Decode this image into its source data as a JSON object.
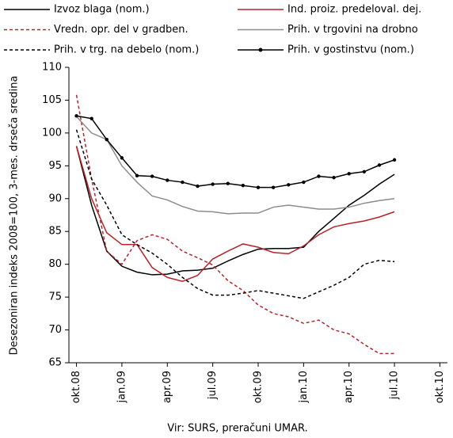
{
  "chart_data": {
    "type": "line",
    "y_label": "Desezoniran indeks 2008=100, 3-mes. drseča sredina",
    "source": "Vir: SURS, preračuni UMAR.",
    "legend": "top",
    "categories": [
      "okt.08",
      null,
      null,
      "jan.09",
      null,
      null,
      "apr.09",
      null,
      null,
      "jul.09",
      null,
      null,
      "okt.09",
      null,
      null,
      "jan.10",
      null,
      null,
      "apr.10",
      null,
      null,
      "jul.10",
      null,
      null,
      "okt.10"
    ],
    "ylim": [
      65,
      110
    ],
    "yticks": [
      65,
      70,
      75,
      80,
      85,
      90,
      95,
      100,
      105,
      110
    ],
    "series": [
      {
        "name": "Izvoz blaga (nom.)",
        "color": "#000000",
        "line_style": "solid",
        "values": [
          98,
          89,
          82,
          79.7,
          78.8,
          78.4,
          78.5,
          79,
          79.1,
          79.4,
          80.5,
          81.5,
          82.3,
          82.4,
          82.4,
          82.6,
          85,
          87,
          89,
          90.5,
          92.2,
          93.7,
          null,
          null,
          null
        ]
      },
      {
        "name": "Ind. proiz. predeloval. dej.",
        "color": "#b5242a",
        "line_style": "solid",
        "values": [
          98,
          90,
          84.8,
          83,
          83,
          79.5,
          78,
          77.4,
          78.3,
          80.8,
          82,
          83.1,
          82.6,
          81.8,
          81.6,
          82.8,
          84.5,
          85.7,
          86.2,
          86.6,
          87.2,
          88,
          null,
          null,
          null
        ]
      },
      {
        "name": "Vredn. opr. del v gradben.",
        "color": "#b5242a",
        "line_style": "dashed",
        "values": [
          105.8,
          93,
          82,
          80,
          83.6,
          84.5,
          83.8,
          82,
          81,
          79.9,
          77.5,
          76,
          73.8,
          72.5,
          72,
          71,
          71.5,
          70,
          69.4,
          67.8,
          66.4,
          66.4,
          null,
          null,
          null
        ]
      },
      {
        "name": "Prih. v trgovini na drobno",
        "color": "#8c8c8c",
        "line_style": "solid",
        "values": [
          102.5,
          100,
          99,
          95,
          92.5,
          90.4,
          89.8,
          88.8,
          88.1,
          88,
          87.7,
          87.8,
          87.8,
          88.7,
          89,
          88.7,
          88.4,
          88.4,
          88.7,
          89.3,
          89.7,
          90,
          null,
          null,
          null
        ]
      },
      {
        "name": "Prih. v trg. na debelo (nom.)",
        "color": "#000000",
        "line_style": "dashed",
        "values": [
          100.5,
          93,
          89,
          84.5,
          83,
          81.7,
          80,
          78,
          76.3,
          75.3,
          75.3,
          75.6,
          76,
          75.6,
          75.2,
          74.8,
          75.8,
          76.8,
          78,
          80,
          80.6,
          80.4,
          null,
          null,
          null
        ]
      },
      {
        "name": "Prih. v gostinstvu (nom.)",
        "color": "#000000",
        "line_style": "solid",
        "marker": "circle",
        "values": [
          102.6,
          102.2,
          99,
          96.2,
          93.5,
          93.4,
          92.8,
          92.5,
          91.9,
          92.2,
          92.3,
          92,
          91.7,
          91.7,
          92.1,
          92.5,
          93.4,
          93.2,
          93.8,
          94.1,
          95.1,
          95.9,
          null,
          null,
          null
        ]
      }
    ]
  }
}
